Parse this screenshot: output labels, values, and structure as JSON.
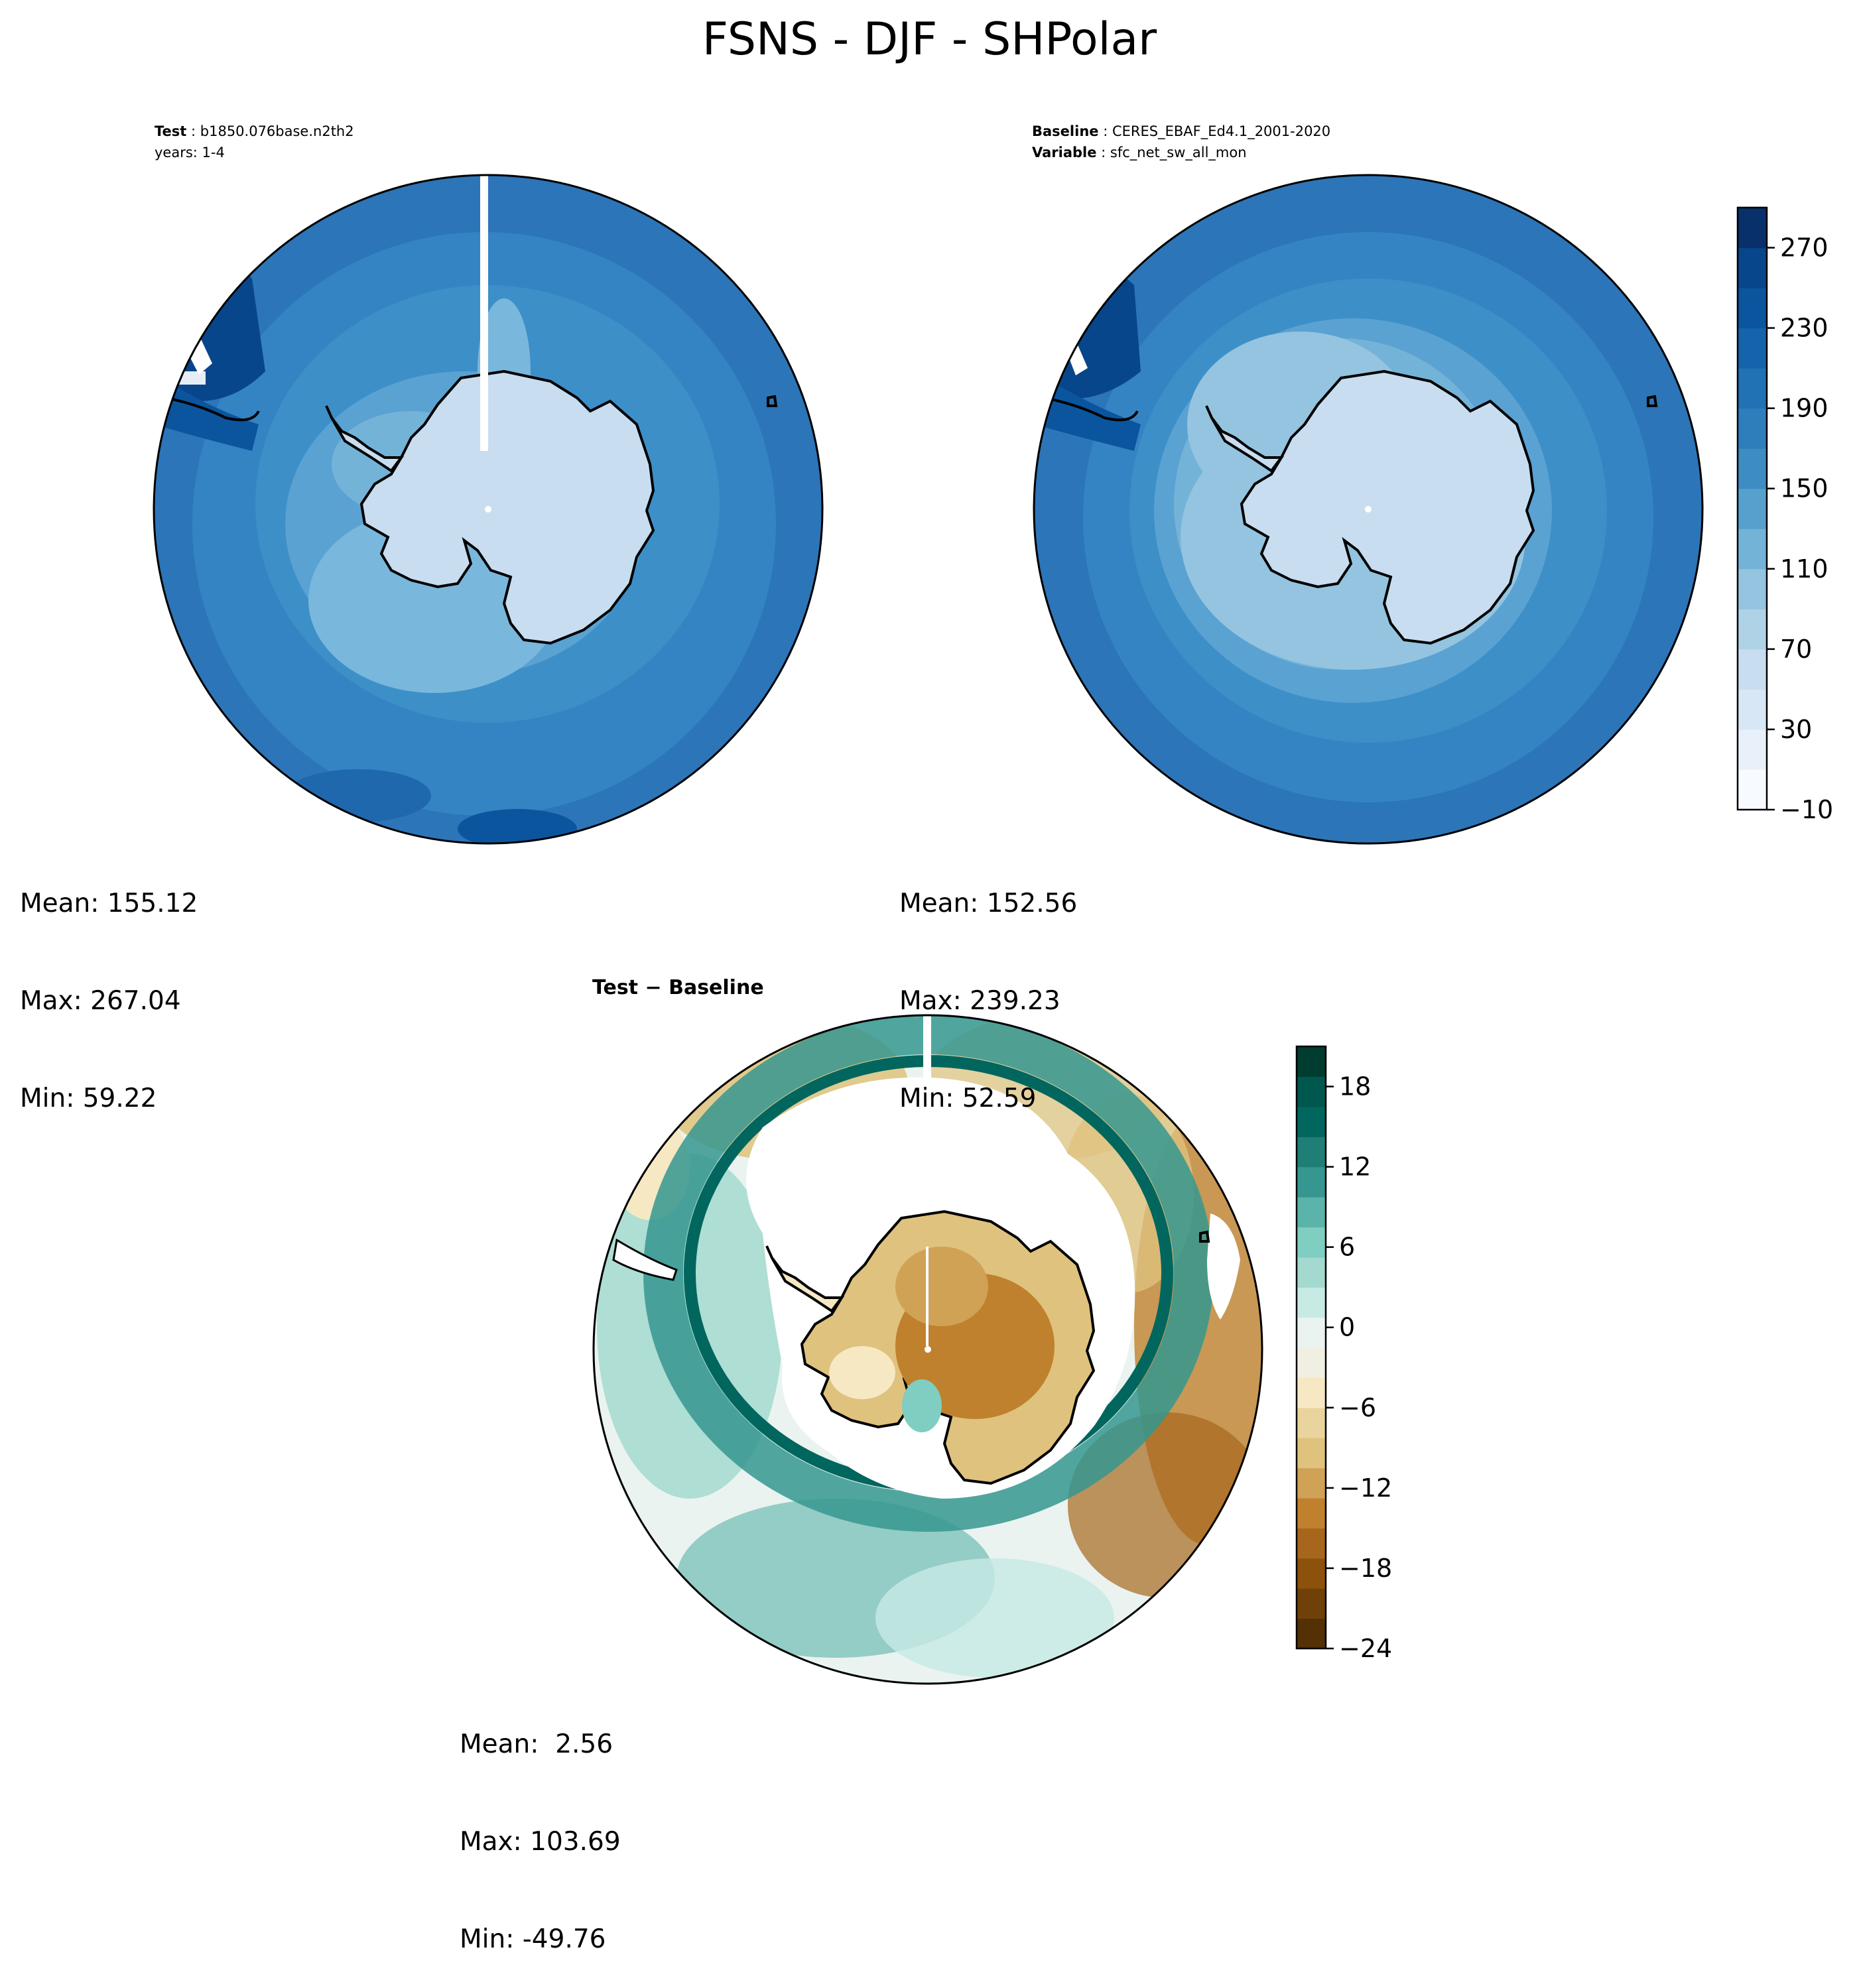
{
  "figure": {
    "title": "FSNS - DJF - SHPolar"
  },
  "chart_data": [
    {
      "type": "heatmap",
      "panel": "test",
      "projection": "south-polar-stereographic",
      "label_key": "Test",
      "label_value": "b1850.076base.n2th2",
      "years_line": "years: 1-4",
      "stats": {
        "mean": "Mean: 155.12",
        "max": "Max: 267.04",
        "min": "Min: 59.22"
      },
      "colormap": "Blues",
      "levels": [
        -10,
        10,
        30,
        50,
        70,
        90,
        110,
        130,
        150,
        170,
        190,
        210,
        230,
        250,
        270,
        290
      ],
      "value_range": [
        -10,
        290
      ]
    },
    {
      "type": "heatmap",
      "panel": "baseline",
      "projection": "south-polar-stereographic",
      "label_key": "Baseline",
      "label_value": "CERES_EBAF_Ed4.1_2001-2020",
      "variable_key": "Variable",
      "variable_value": "sfc_net_sw_all_mon",
      "stats": {
        "mean": "Mean: 152.56",
        "max": "Max: 239.23",
        "min": "Min: 52.59"
      },
      "colorbar": {
        "ticks": [
          -10,
          30,
          70,
          110,
          150,
          190,
          230,
          270
        ],
        "tick_labels": [
          "−10",
          "30",
          "70",
          "110",
          "150",
          "190",
          "230",
          "270"
        ],
        "range": [
          -10,
          290
        ],
        "colors": [
          "#f7fbff",
          "#e8f1fa",
          "#d8e7f5",
          "#c8ddf0",
          "#b0d2e7",
          "#94c4df",
          "#74b3d8",
          "#56a0ce",
          "#3d8dc3",
          "#2f7ebc",
          "#2171b5",
          "#1563aa",
          "#0b559f",
          "#08468b",
          "#08306b"
        ]
      }
    },
    {
      "type": "heatmap",
      "panel": "difference",
      "projection": "south-polar-stereographic",
      "title_left": "Test",
      "title_op": "−",
      "title_right": "Baseline",
      "stats": {
        "mean": "Mean:  2.56",
        "max": "Max: 103.69",
        "min": "Min: -49.76"
      },
      "colormap": "BrBG",
      "colorbar": {
        "ticks": [
          -24,
          -18,
          -12,
          -6,
          0,
          6,
          12,
          18
        ],
        "tick_labels": [
          "−24",
          "−18",
          "−12",
          "−6",
          "0",
          "6",
          "12",
          "18"
        ],
        "range": [
          -24,
          21
        ],
        "colors": [
          "#543005",
          "#6f4109",
          "#8c510a",
          "#a6661c",
          "#bf812d",
          "#cfa255",
          "#dfc27d",
          "#ead49d",
          "#f6e8c3",
          "#f1efe1",
          "#eaf3f0",
          "#c7eae5",
          "#a3d9cf",
          "#80cdc1",
          "#5ab4a9",
          "#35978f",
          "#1f7f77",
          "#01665e",
          "#00574e",
          "#003c30"
        ]
      }
    }
  ]
}
